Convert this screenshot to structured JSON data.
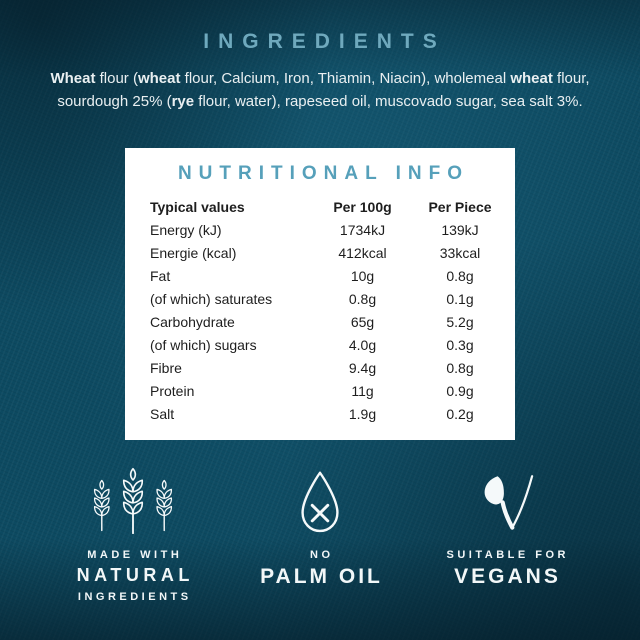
{
  "colors": {
    "background": "#0d4a61",
    "heading_teal_light": "#6fa9bd",
    "heading_teal": "#56a0ba",
    "body_text_light": "#e9eff1",
    "card_background": "#ffffff",
    "card_text": "#1e1e1e",
    "icon_white": "#f5f9fa"
  },
  "ingredients": {
    "title": "INGREDIENTS",
    "segments": [
      {
        "text": "Wheat",
        "bold": true
      },
      {
        "text": " flour (",
        "bold": false
      },
      {
        "text": "wheat",
        "bold": true
      },
      {
        "text": " flour, Calcium, Iron, Thiamin, Niacin), wholemeal ",
        "bold": false
      },
      {
        "text": "wheat",
        "bold": true
      },
      {
        "text": " flour, sourdough 25% (",
        "bold": false
      },
      {
        "text": "rye",
        "bold": true
      },
      {
        "text": " flour, water), rapeseed oil, muscovado sugar, sea salt 3%.",
        "bold": false
      }
    ]
  },
  "nutrition": {
    "title": "NUTRITIONAL INFO",
    "columns": [
      "Typical values",
      "Per 100g",
      "Per Piece"
    ],
    "rows": [
      {
        "label": "Energy (kJ)",
        "per_100g": "1734kJ",
        "per_piece": "139kJ"
      },
      {
        "label": "Energie (kcal)",
        "per_100g": "412kcal",
        "per_piece": "33kcal"
      },
      {
        "label": "Fat",
        "per_100g": "10g",
        "per_piece": "0.8g"
      },
      {
        "label": "(of which) saturates",
        "per_100g": "0.8g",
        "per_piece": "0.1g"
      },
      {
        "label": "Carbohydrate",
        "per_100g": "65g",
        "per_piece": "5.2g"
      },
      {
        "label": "(of which) sugars",
        "per_100g": "4.0g",
        "per_piece": "0.3g"
      },
      {
        "label": "Fibre",
        "per_100g": "9.4g",
        "per_piece": "0.8g"
      },
      {
        "label": "Protein",
        "per_100g": "11g",
        "per_piece": "0.9g"
      },
      {
        "label": "Salt",
        "per_100g": "1.9g",
        "per_piece": "0.2g"
      }
    ]
  },
  "badges": {
    "natural": {
      "icon": "wheat-icon",
      "top": "MADE WITH",
      "main": "NATURAL",
      "bottom": "INGREDIENTS"
    },
    "palm_oil": {
      "icon": "droplet-cross-icon",
      "top": "NO",
      "main": "PALM OIL"
    },
    "vegan": {
      "icon": "leaf-v-icon",
      "top": "SUITABLE FOR",
      "main": "VEGANS"
    }
  }
}
